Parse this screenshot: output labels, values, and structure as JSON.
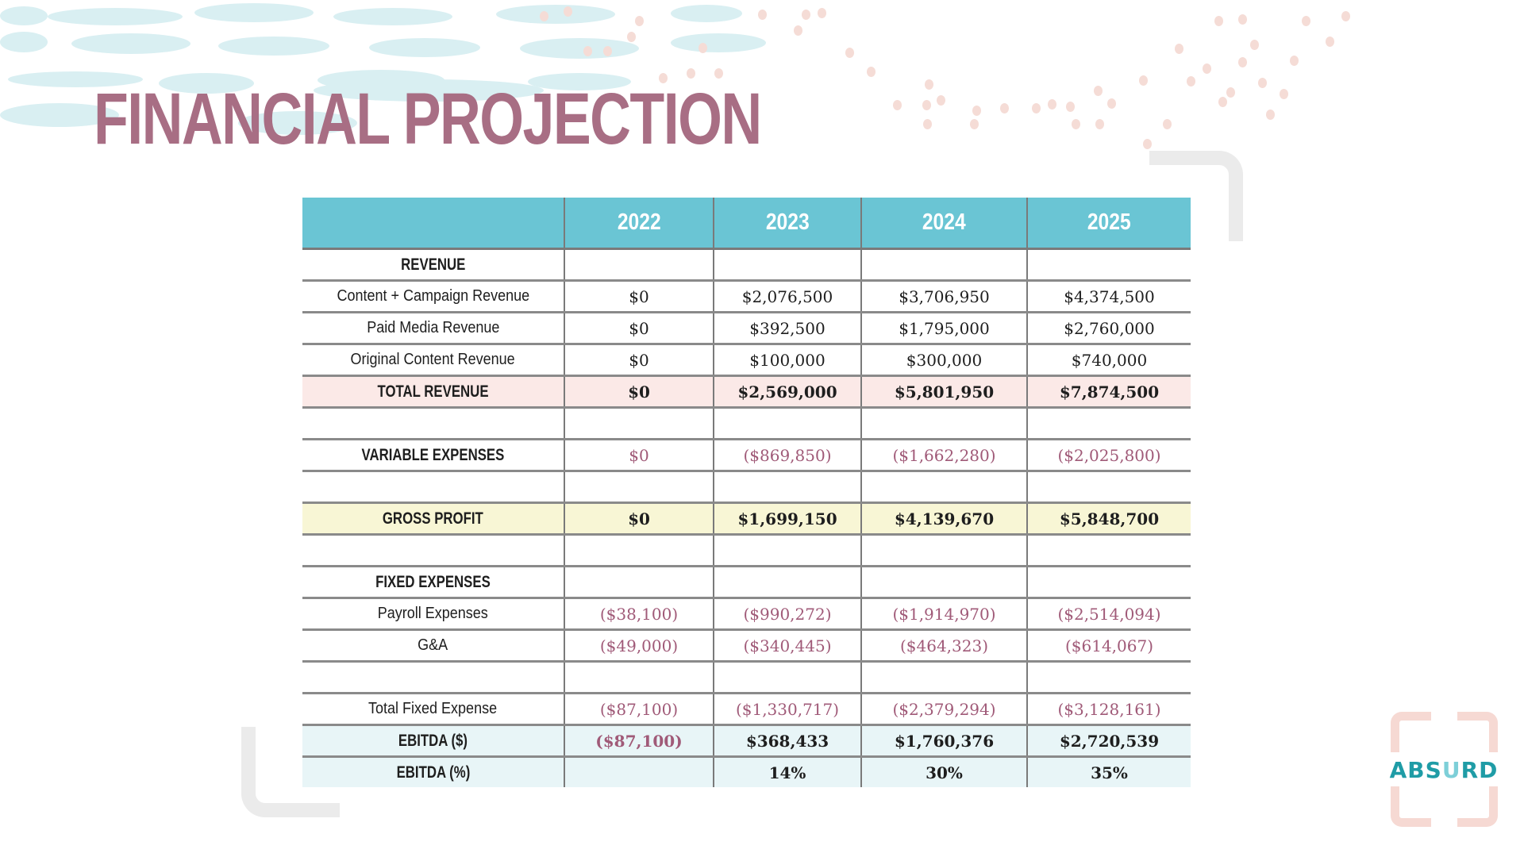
{
  "title": "FINANCIAL PROJECTION",
  "table": {
    "columns": [
      "",
      "2022",
      "2023",
      "2024",
      "2025"
    ],
    "rows": [
      {
        "label": "REVENUE",
        "values": [
          "",
          "",
          "",
          ""
        ],
        "style": "section"
      },
      {
        "label": "Content + Campaign Revenue",
        "values": [
          "$0",
          "$2,076,500",
          "$3,706,950",
          "$4,374,500"
        ],
        "style": "normal"
      },
      {
        "label": "Paid Media Revenue",
        "values": [
          "$0",
          "$392,500",
          "$1,795,000",
          "$2,760,000"
        ],
        "style": "normal"
      },
      {
        "label": "Original Content Revenue",
        "values": [
          "$0",
          "$100,000",
          "$300,000",
          "$740,000"
        ],
        "style": "normal"
      },
      {
        "label": "TOTAL REVENUE",
        "values": [
          "$0",
          "$2,569,000",
          "$5,801,950",
          "$7,874,500"
        ],
        "style": "total-revenue"
      },
      {
        "label": "",
        "values": [
          "",
          "",
          "",
          ""
        ],
        "style": "blank"
      },
      {
        "label": "VARIABLE EXPENSES",
        "values": [
          "$0",
          "($869,850)",
          "($1,662,280)",
          "($2,025,800)"
        ],
        "style": "section-neg"
      },
      {
        "label": "",
        "values": [
          "",
          "",
          "",
          ""
        ],
        "style": "blank"
      },
      {
        "label": "GROSS PROFIT",
        "values": [
          "$0",
          "$1,699,150",
          "$4,139,670",
          "$5,848,700"
        ],
        "style": "gross-profit"
      },
      {
        "label": "",
        "values": [
          "",
          "",
          "",
          ""
        ],
        "style": "blank"
      },
      {
        "label": "FIXED EXPENSES",
        "values": [
          "",
          "",
          "",
          ""
        ],
        "style": "section"
      },
      {
        "label": "Payroll Expenses",
        "values": [
          "($38,100)",
          "($990,272)",
          "($1,914,970)",
          "($2,514,094)"
        ],
        "style": "neg"
      },
      {
        "label": "G&A",
        "values": [
          "($49,000)",
          "($340,445)",
          "($464,323)",
          "($614,067)"
        ],
        "style": "neg"
      },
      {
        "label": "",
        "values": [
          "",
          "",
          "",
          ""
        ],
        "style": "blank"
      },
      {
        "label": "Total Fixed Expense",
        "values": [
          "($87,100)",
          "($1,330,717)",
          "($2,379,294)",
          "($3,128,161)"
        ],
        "style": "neg"
      },
      {
        "label": "EBITDA ($)",
        "values": [
          "($87,100)",
          "$368,433",
          "$1,760,376",
          "$2,720,539"
        ],
        "style": "ebitda"
      },
      {
        "label": "EBITDA (%)",
        "values": [
          "",
          "14%",
          "30%",
          "35%"
        ],
        "style": "ebitda-pct"
      }
    ]
  },
  "logo": {
    "text_before": "ABS",
    "text_highlight": "U",
    "text_after": "RD"
  },
  "colors": {
    "title": "#a86e84",
    "header": "#6ac5d4",
    "negative": "#a05a78",
    "total_revenue_bg": "#fbe9e7",
    "gross_profit_bg": "#f8f6d5",
    "ebitda_bg": "#e8f5f7",
    "logo": "#1f9ca6"
  }
}
